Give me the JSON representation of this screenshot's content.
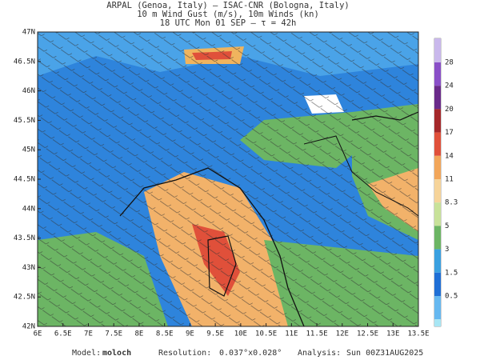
{
  "header": {
    "lines": [
      "ARPAL (Genoa, Italy)  –  ISAC-CNR (Bologna, Italy)",
      "10 m Wind Gust (m/s), 10m Winds (kn)",
      "18 UTC Mon 01 SEP  –  τ = 42h"
    ]
  },
  "map": {
    "lat_labels": [
      "47N",
      "46.5N",
      "46N",
      "45.5N",
      "45N",
      "44.5N",
      "44N",
      "43.5N",
      "43N",
      "42.5N",
      "42N"
    ],
    "lon_labels": [
      "6E",
      "6.5E",
      "7E",
      "7.5E",
      "8E",
      "8.5E",
      "9E",
      "9.5E",
      "10E",
      "10.5E",
      "11E",
      "11.5E",
      "12E",
      "12.5E",
      "13E",
      "13.5E"
    ]
  },
  "colorbar": {
    "labels": [
      "28",
      "24",
      "20",
      "17",
      "14",
      "11",
      "8.3",
      "5",
      "3",
      "1.5",
      "0.5"
    ],
    "colors": [
      "#c9b8ec",
      "#8a4fc8",
      "#6a2a8a",
      "#a4282a",
      "#e0503a",
      "#f2a65a",
      "#f6d49a",
      "#c8e29a",
      "#6cb564",
      "#3aa0e0",
      "#1f6fd6",
      "#66b8f0",
      "#a8e6f4"
    ]
  },
  "footer": {
    "model_label": "Model:",
    "model": "moloch",
    "resolution_label": "Resolution:",
    "resolution": "0.037°x0.028°",
    "analysis_label": "Analysis:",
    "analysis": "Sun 00Z31AUG2025"
  }
}
